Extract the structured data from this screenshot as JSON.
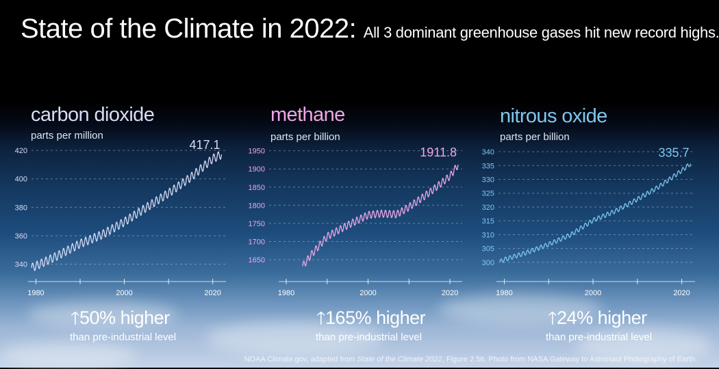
{
  "title": {
    "main": "State of the Climate in 2022:",
    "subtitle": "All 3 dominant greenhouse gases hit new record highs."
  },
  "credit": {
    "pre": "NOAA Climate.gov, adapted from ",
    "italic": "State of the Climate 2022",
    "post": ", Figure 2.56. Photo from NASA Gateway to Astronaut Photography of Earth."
  },
  "colors": {
    "co2": "#d8dcf5",
    "methane": "#f0a6e6",
    "n2o": "#7ec8f0",
    "grid": "rgba(255,255,255,0.35)"
  },
  "chart_data": [
    {
      "type": "line",
      "name": "carbon dioxide",
      "unit": "parts per million",
      "x_range": [
        1979,
        2023
      ],
      "ylim": [
        335,
        421
      ],
      "yticks": [
        340,
        360,
        380,
        400,
        420
      ],
      "xticks": [
        1980,
        2000,
        2020
      ],
      "latest_label": "417.1",
      "series": [
        {
          "x": [
            1979,
            1980,
            1985,
            1990,
            1995,
            2000,
            2005,
            2010,
            2015,
            2020,
            2022
          ],
          "values": [
            337.5,
            338.8,
            346.1,
            354.4,
            360.8,
            369.7,
            379.9,
            389.9,
            401.0,
            414.2,
            417.1
          ]
        }
      ],
      "seasonal_amplitude": 3,
      "change": "50% higher",
      "change_note": "than pre-industrial level"
    },
    {
      "type": "line",
      "name": "methane",
      "unit": "parts per billion",
      "x_range": [
        1979,
        2023
      ],
      "ylim": [
        1620,
        1955
      ],
      "yticks": [
        1650,
        1700,
        1750,
        1800,
        1850,
        1900,
        1950
      ],
      "xticks": [
        1980,
        2000,
        2020
      ],
      "latest_label": "1911.8",
      "series": [
        {
          "x": [
            1984,
            1986,
            1990,
            1995,
            2000,
            2003,
            2007,
            2010,
            2015,
            2020,
            2022
          ],
          "values": [
            1632,
            1662,
            1714,
            1745,
            1773,
            1777,
            1775,
            1795,
            1835,
            1880,
            1911.8
          ]
        }
      ],
      "seasonal_amplitude": 10,
      "change": "165% higher",
      "change_note": "than pre-industrial level"
    },
    {
      "type": "line",
      "name": "nitrous oxide",
      "unit": "parts per billion",
      "x_range": [
        1979,
        2023
      ],
      "ylim": [
        297,
        341
      ],
      "yticks": [
        300,
        305,
        310,
        315,
        320,
        325,
        330,
        335,
        340
      ],
      "xticks": [
        1980,
        2000,
        2020
      ],
      "latest_label": "335.7",
      "series": [
        {
          "x": [
            1979,
            1980,
            1985,
            1990,
            1995,
            2000,
            2005,
            2010,
            2015,
            2020,
            2022
          ],
          "values": [
            300.2,
            301,
            303.5,
            306.5,
            310,
            315.2,
            318.5,
            322.8,
            327.5,
            333.2,
            335.7
          ]
        }
      ],
      "seasonal_amplitude": 0.8,
      "change": "24% higher",
      "change_note": "than pre-industrial level"
    }
  ]
}
